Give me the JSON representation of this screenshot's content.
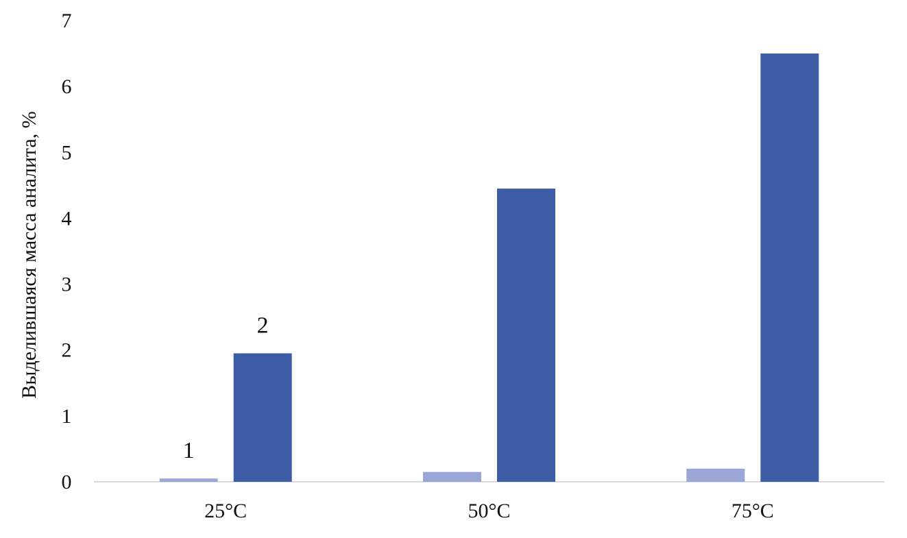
{
  "chart_data": {
    "type": "bar",
    "title": "",
    "xlabel": "",
    "ylabel": "Выделившаяся масса аналита, %",
    "categories": [
      "25°C",
      "50°C",
      "75°C"
    ],
    "series": [
      {
        "name": "1",
        "values": [
          0.05,
          0.15,
          0.2
        ],
        "color": "#9aa6d6"
      },
      {
        "name": "2",
        "values": [
          1.95,
          4.45,
          6.5
        ],
        "color": "#3d5ca6"
      }
    ],
    "series_labels_shown_at_category": "25°C",
    "ylim": [
      0,
      7
    ],
    "yticks": [
      0,
      1,
      2,
      3,
      4,
      5,
      6,
      7
    ],
    "grid": false,
    "legend": "none"
  }
}
